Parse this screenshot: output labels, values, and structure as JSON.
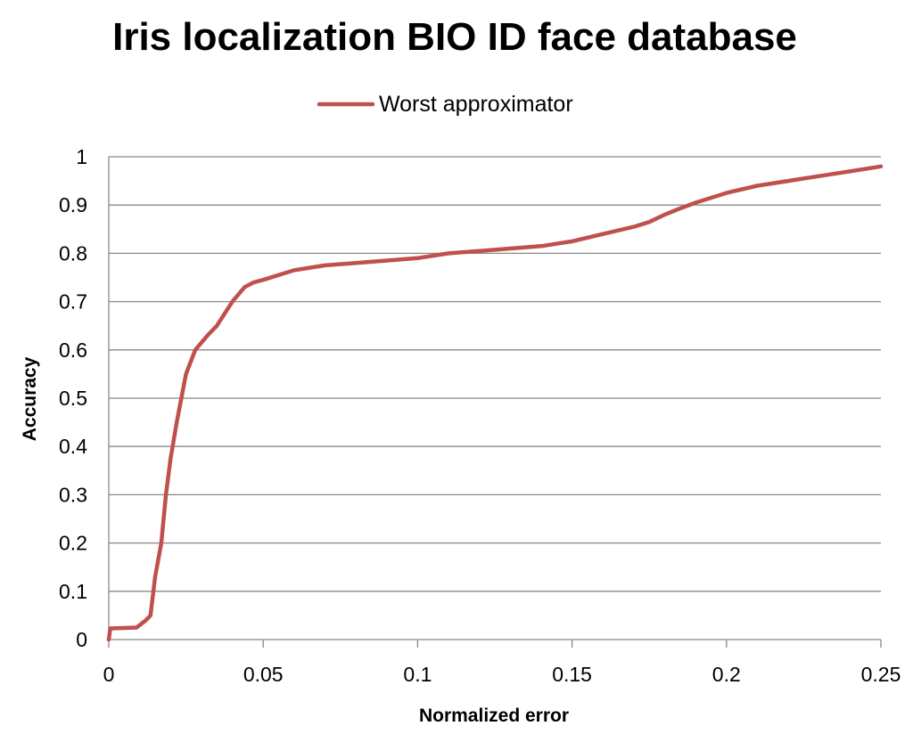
{
  "colors": {
    "series": "#C0504D",
    "grid": "#888888",
    "background": "#FFFFFF",
    "text": "#000000"
  },
  "chart_data": {
    "type": "line",
    "title": "Iris localization BIO ID face database",
    "xlabel": "Normalized error",
    "ylabel": "Accuracy",
    "xlim": [
      0,
      0.25
    ],
    "ylim": [
      0,
      1
    ],
    "x_ticks": [
      "0",
      "0.05",
      "0.1",
      "0.15",
      "0.2",
      "0.25"
    ],
    "y_ticks": [
      "0",
      "0.1",
      "0.2",
      "0.3",
      "0.4",
      "0.5",
      "0.6",
      "0.7",
      "0.8",
      "0.9",
      "1"
    ],
    "grid": "horizontal",
    "legend_position": "top-center",
    "series": [
      {
        "name": "Worst approximator",
        "color": "#C0504D",
        "x": [
          0,
          0.0005,
          0.009,
          0.012,
          0.0135,
          0.015,
          0.017,
          0.0185,
          0.02,
          0.022,
          0.025,
          0.028,
          0.032,
          0.035,
          0.04,
          0.044,
          0.047,
          0.05,
          0.06,
          0.07,
          0.08,
          0.09,
          0.1,
          0.11,
          0.12,
          0.13,
          0.14,
          0.15,
          0.16,
          0.17,
          0.175,
          0.18,
          0.185,
          0.19,
          0.2,
          0.21,
          0.22,
          0.23,
          0.24,
          0.25
        ],
        "values": [
          0,
          0.023,
          0.025,
          0.04,
          0.05,
          0.13,
          0.2,
          0.3,
          0.375,
          0.45,
          0.55,
          0.6,
          0.63,
          0.65,
          0.7,
          0.73,
          0.74,
          0.745,
          0.765,
          0.775,
          0.78,
          0.785,
          0.79,
          0.8,
          0.805,
          0.81,
          0.815,
          0.825,
          0.84,
          0.855,
          0.865,
          0.88,
          0.893,
          0.905,
          0.925,
          0.94,
          0.95,
          0.96,
          0.97,
          0.98
        ]
      }
    ]
  }
}
